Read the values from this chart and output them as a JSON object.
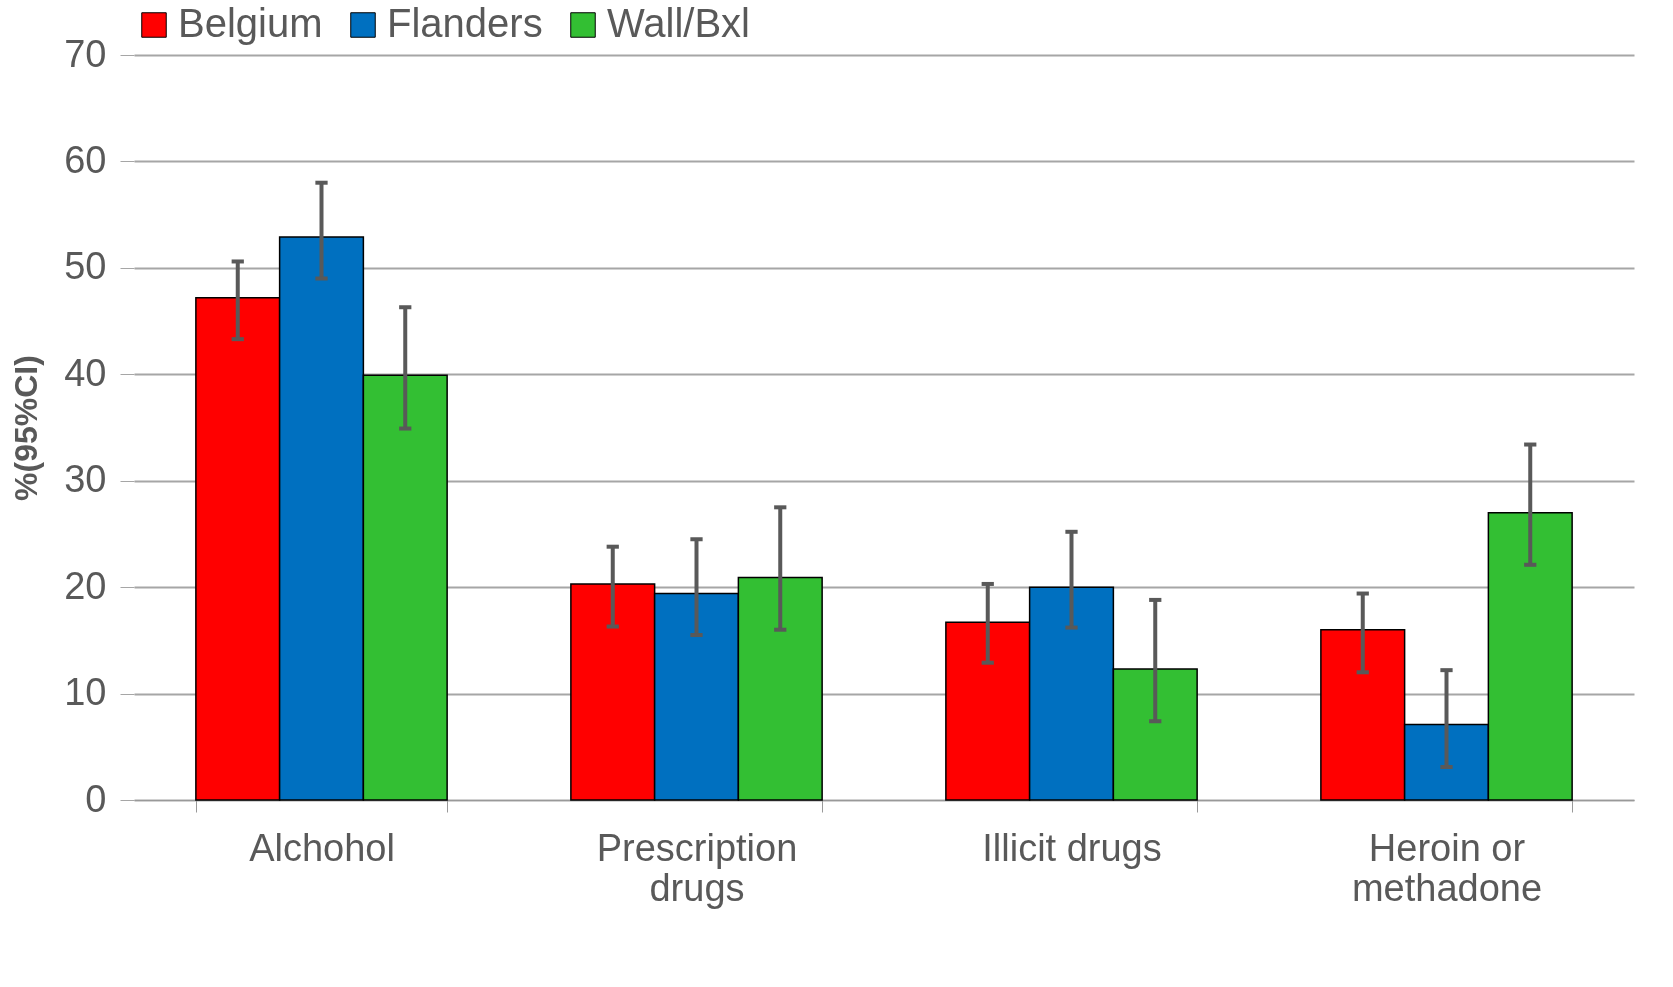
{
  "chart_data": {
    "type": "bar",
    "ylabel": "%(95%CI)",
    "categories": [
      "Alchohol",
      "Prescription drugs",
      "Illicit drugs",
      "Heroin or methadone"
    ],
    "series": [
      {
        "name": "Belgium",
        "color": "#ff0000",
        "values": [
          47.2,
          20.3,
          16.7,
          16.0
        ],
        "errors": [
          [
            43.3,
            50.6
          ],
          [
            16.3,
            23.8
          ],
          [
            12.9,
            20.3
          ],
          [
            12.0,
            19.4
          ]
        ]
      },
      {
        "name": "Flanders",
        "color": "#0070c0",
        "values": [
          52.9,
          19.4,
          20.0,
          7.1
        ],
        "errors": [
          [
            49.0,
            58.0
          ],
          [
            15.5,
            24.5
          ],
          [
            16.2,
            25.2
          ],
          [
            3.1,
            12.2
          ]
        ]
      },
      {
        "name": "Wall/Bxl",
        "color": "#33bf33",
        "values": [
          39.9,
          20.9,
          12.3,
          27.0
        ],
        "errors": [
          [
            34.9,
            46.3
          ],
          [
            16.0,
            27.5
          ],
          [
            7.4,
            18.8
          ],
          [
            22.1,
            33.4
          ]
        ]
      }
    ],
    "ylim": [
      0,
      70
    ],
    "yticks": [
      0,
      10,
      20,
      30,
      40,
      50,
      60,
      70
    ],
    "grid": "y",
    "legend": "top"
  }
}
